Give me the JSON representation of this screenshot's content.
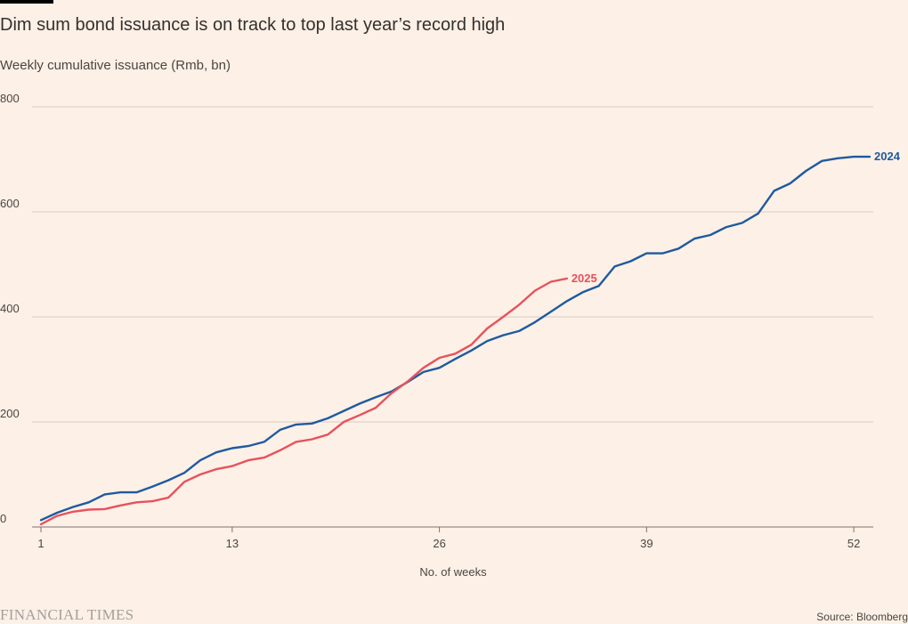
{
  "header": {
    "title": "Dim sum bond issuance is on track to top last year’s record high",
    "subtitle": "Weekly cumulative issuance (Rmb, bn)"
  },
  "footer": {
    "logo": "FINANCIAL TIMES",
    "source": "Source: Bloomberg"
  },
  "colors": {
    "background": "#fdf0e6",
    "gridline": "#d8cdc4",
    "series_2024": "#1e5aa0",
    "series_2025": "#e6525d"
  },
  "chart_data": {
    "type": "line",
    "title": "Dim sum bond issuance is on track to top last year’s record high",
    "subtitle": "Weekly cumulative issuance (Rmb, bn)",
    "xlabel": "No. of weeks",
    "ylabel": "",
    "xlim": [
      1,
      53
    ],
    "ylim": [
      0,
      800
    ],
    "x_ticks": [
      1,
      13,
      26,
      39,
      52
    ],
    "y_ticks": [
      0,
      200,
      400,
      600,
      800
    ],
    "grid": true,
    "legend": "direct labels at line ends",
    "series": [
      {
        "name": "2024",
        "color": "#1e5aa0",
        "x": [
          1,
          2,
          3,
          4,
          5,
          6,
          7,
          8,
          9,
          10,
          11,
          12,
          13,
          14,
          15,
          16,
          17,
          18,
          19,
          20,
          21,
          22,
          23,
          24,
          25,
          26,
          27,
          28,
          29,
          30,
          31,
          32,
          33,
          34,
          35,
          36,
          37,
          38,
          39,
          40,
          41,
          42,
          43,
          44,
          45,
          46,
          47,
          48,
          49,
          50,
          51,
          52,
          53
        ],
        "values": [
          13,
          27,
          38,
          47,
          62,
          66,
          66,
          77,
          89,
          103,
          127,
          142,
          150,
          154,
          162,
          185,
          195,
          197,
          207,
          221,
          235,
          247,
          258,
          276,
          295,
          303,
          320,
          336,
          354,
          365,
          373,
          390,
          410,
          430,
          447,
          459,
          496,
          506,
          521,
          521,
          530,
          549,
          556,
          571,
          579,
          597,
          640,
          654,
          678,
          697,
          702,
          705,
          705
        ]
      },
      {
        "name": "2025",
        "color": "#e6525d",
        "x": [
          1,
          2,
          3,
          4,
          5,
          6,
          7,
          8,
          9,
          10,
          11,
          12,
          13,
          14,
          15,
          16,
          17,
          18,
          19,
          20,
          21,
          22,
          23,
          24,
          25,
          26,
          27,
          28,
          29,
          30,
          31,
          32,
          33,
          34
        ],
        "values": [
          5,
          21,
          29,
          33,
          34,
          41,
          47,
          49,
          56,
          86,
          100,
          110,
          116,
          127,
          132,
          146,
          162,
          167,
          176,
          200,
          213,
          227,
          255,
          277,
          303,
          322,
          330,
          347,
          378,
          400,
          423,
          450,
          467,
          473
        ]
      }
    ]
  }
}
